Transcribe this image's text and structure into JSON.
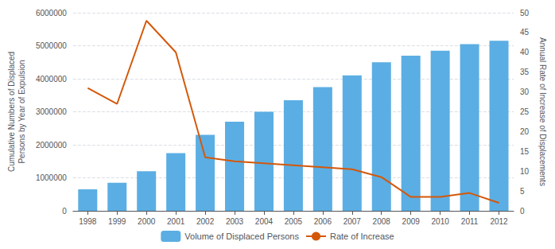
{
  "chart_data": {
    "type": "bar",
    "categories": [
      "1998",
      "1999",
      "2000",
      "2001",
      "2002",
      "2003",
      "2004",
      "2005",
      "2006",
      "2007",
      "2008",
      "2009",
      "2010",
      "2011",
      "2012"
    ],
    "ylabel": "Cumulative Numbers of Displaced\nPersons by Year of Expulsion",
    "y2label": "Annual Rate of Increase of Displacements",
    "series": [
      {
        "name": "Volume of Displaced Persons",
        "type": "bar",
        "color": "#5baee3",
        "values": [
          650000,
          850000,
          1200000,
          1750000,
          2300000,
          2700000,
          3000000,
          3350000,
          3750000,
          4100000,
          4500000,
          4700000,
          4850000,
          5050000,
          5150000
        ]
      },
      {
        "name": "Rate of Increase",
        "type": "line",
        "color": "#d4580a",
        "axis": "y2",
        "values": [
          31,
          27,
          48,
          40,
          13.5,
          12.5,
          12,
          11.5,
          11,
          10.5,
          8.5,
          3.5,
          3.5,
          4.5,
          2
        ]
      }
    ],
    "ylim": [
      0,
      6000000
    ],
    "yticks": [
      0,
      1000000,
      2000000,
      3000000,
      4000000,
      5000000,
      6000000
    ],
    "y2lim": [
      0,
      50
    ],
    "y2ticks": [
      0,
      5,
      10,
      15,
      20,
      25,
      30,
      35,
      40,
      45,
      50
    ],
    "grid": true,
    "legend": "bottom"
  }
}
